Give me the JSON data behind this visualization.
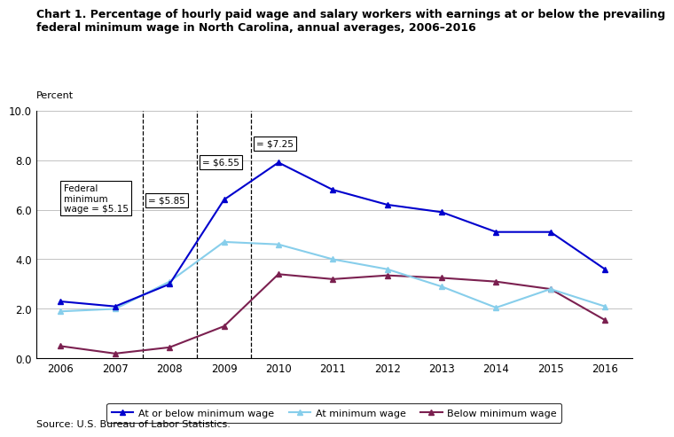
{
  "title_line1": "Chart 1. Percentage of hourly paid wage and salary workers with earnings at or below the prevailing",
  "title_line2": "federal minimum wage in North Carolina, annual averages, 2006–2016",
  "ylabel": "Percent",
  "source": "Source: U.S. Bureau of Labor Statistics.",
  "years": [
    2006,
    2007,
    2008,
    2009,
    2010,
    2011,
    2012,
    2013,
    2014,
    2015,
    2016
  ],
  "at_or_below": [
    2.3,
    2.1,
    3.0,
    6.4,
    7.9,
    6.8,
    6.2,
    5.9,
    5.1,
    5.1,
    3.6
  ],
  "at_minimum": [
    1.9,
    2.0,
    3.1,
    4.7,
    4.6,
    4.0,
    3.6,
    2.9,
    2.05,
    2.8,
    2.1
  ],
  "below_minimum": [
    0.5,
    0.2,
    0.45,
    1.3,
    3.4,
    3.2,
    3.35,
    3.25,
    3.1,
    2.8,
    1.55
  ],
  "color_blue": "#0000CD",
  "color_lightblue": "#87CEEB",
  "color_maroon": "#7B2050",
  "vline_years": [
    2007.5,
    2008.5,
    2009.5
  ],
  "ylim": [
    0.0,
    10.0
  ],
  "yticks": [
    0.0,
    2.0,
    4.0,
    6.0,
    8.0,
    10.0
  ],
  "legend_labels": [
    "At or below minimum wage",
    "At minimum wage",
    "Below minimum wage"
  ]
}
